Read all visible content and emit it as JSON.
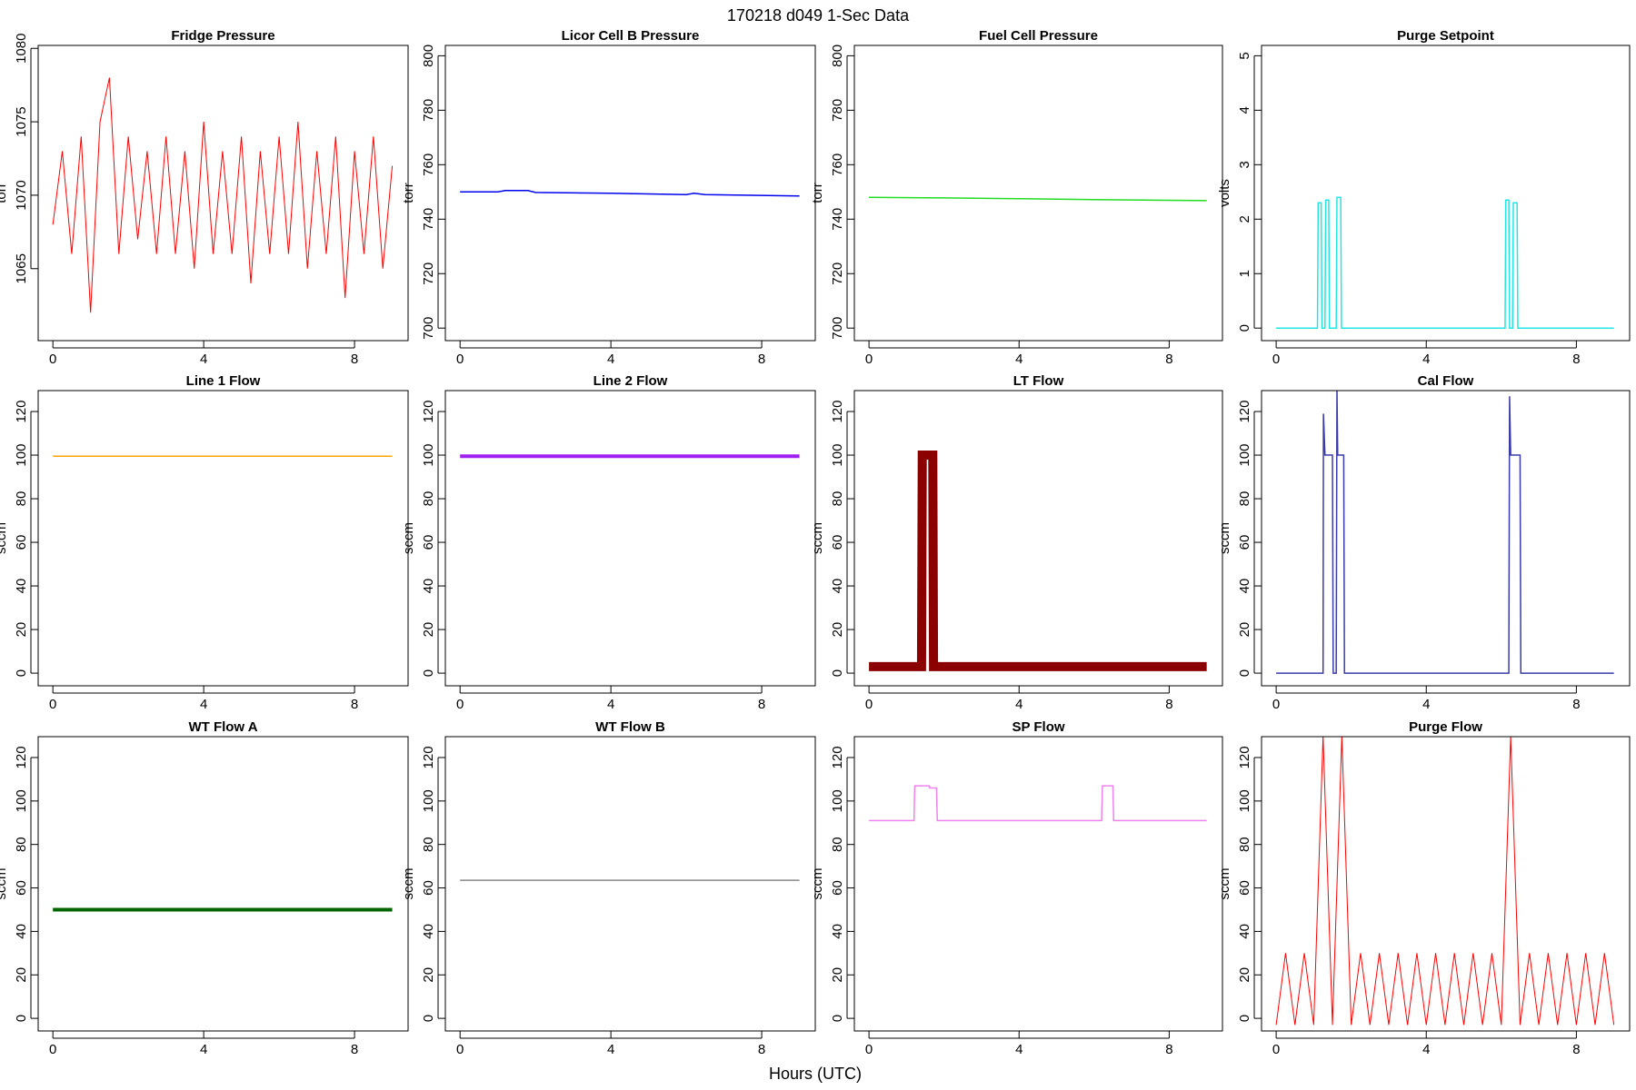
{
  "title": "170218   d049   1-Sec Data",
  "xlabel": "Hours (UTC)",
  "chart_data": [
    {
      "type": "line",
      "title": "Fridge Pressure",
      "ylabel": "torr",
      "color": "#ff0000",
      "line_width": 1,
      "x": [
        0,
        0.25,
        0.5,
        0.75,
        1,
        1.25,
        1.5,
        1.75,
        2,
        2.25,
        2.5,
        2.75,
        3,
        3.25,
        3.5,
        3.75,
        4,
        4.25,
        4.5,
        4.75,
        5,
        5.25,
        5.5,
        5.75,
        6,
        6.25,
        6.5,
        6.75,
        7,
        7.25,
        7.5,
        7.75,
        8,
        8.25,
        8.5,
        8.75,
        9
      ],
      "values": [
        1068,
        1073,
        1066,
        1074,
        1062,
        1075,
        1078,
        1066,
        1074,
        1067,
        1073,
        1066,
        1074,
        1066,
        1073,
        1065,
        1075,
        1066,
        1073,
        1066,
        1074,
        1064,
        1073,
        1066,
        1074,
        1066,
        1075,
        1065,
        1073,
        1066,
        1074,
        1063,
        1073,
        1066,
        1074,
        1065,
        1072
      ],
      "xlim": [
        -0.39,
        9.42
      ],
      "xticks": [
        0,
        4,
        8
      ],
      "ylim": [
        1060.1,
        1080.2
      ],
      "yticks": [
        1065,
        1070,
        1075,
        1080
      ]
    },
    {
      "type": "line",
      "title": "Licor Cell B Pressure",
      "ylabel": "torr",
      "color": "#0000ee",
      "line_width": 1.5,
      "x": [
        0,
        1,
        1.2,
        1.8,
        2,
        4,
        6,
        6.2,
        6.5,
        9
      ],
      "values": [
        750,
        750,
        750.5,
        750.5,
        749.8,
        749.5,
        749,
        749.5,
        749,
        748.5
      ],
      "xlim": [
        -0.39,
        9.42
      ],
      "xticks": [
        0,
        4,
        8
      ],
      "ylim": [
        695.4,
        803.8
      ],
      "yticks": [
        700,
        720,
        740,
        760,
        780,
        800
      ]
    },
    {
      "type": "line",
      "title": "Fuel Cell Pressure",
      "ylabel": "torr",
      "color": "#22dd22",
      "line_width": 1.5,
      "x": [
        0,
        2,
        4,
        6,
        9
      ],
      "values": [
        748,
        747.8,
        747.5,
        747.2,
        746.8
      ],
      "xlim": [
        -0.39,
        9.42
      ],
      "xticks": [
        0,
        4,
        8
      ],
      "ylim": [
        695.4,
        803.8
      ],
      "yticks": [
        700,
        720,
        740,
        760,
        780,
        800
      ]
    },
    {
      "type": "line",
      "title": "Purge Setpoint",
      "ylabel": "volts",
      "color": "#22e6e6",
      "line_width": 1.5,
      "x": [
        0,
        1.1,
        1.12,
        1.2,
        1.22,
        1.3,
        1.32,
        1.4,
        1.42,
        1.6,
        1.62,
        1.72,
        1.74,
        6.1,
        6.12,
        6.2,
        6.22,
        6.3,
        6.32,
        6.42,
        6.44,
        9
      ],
      "values": [
        0,
        0,
        2.3,
        2.3,
        0,
        0,
        2.35,
        2.35,
        0,
        0,
        2.4,
        2.4,
        0,
        0,
        2.35,
        2.35,
        0,
        0,
        2.3,
        2.3,
        0,
        0
      ],
      "xlim": [
        -0.39,
        9.42
      ],
      "xticks": [
        0,
        4,
        8
      ],
      "ylim": [
        -0.23,
        5.19
      ],
      "yticks": [
        0,
        1,
        2,
        3,
        4,
        5
      ]
    },
    {
      "type": "line",
      "title": "Line 1 Flow",
      "ylabel": "sccm",
      "color": "#ffa500",
      "line_width": 1.5,
      "x": [
        0,
        9
      ],
      "values": [
        99.5,
        99.5
      ],
      "xlim": [
        -0.39,
        9.42
      ],
      "xticks": [
        0,
        4,
        8
      ],
      "ylim": [
        -5.8,
        129.6
      ],
      "yticks": [
        0,
        20,
        40,
        60,
        80,
        100,
        120
      ]
    },
    {
      "type": "line",
      "title": "Line 2 Flow",
      "ylabel": "sccm",
      "color": "#a020f0",
      "line_width": 4,
      "x": [
        0,
        9
      ],
      "values": [
        99.5,
        99.5
      ],
      "xlim": [
        -0.39,
        9.42
      ],
      "xticks": [
        0,
        4,
        8
      ],
      "ylim": [
        -5.8,
        129.6
      ],
      "yticks": [
        0,
        20,
        40,
        60,
        80,
        100,
        120
      ]
    },
    {
      "type": "line",
      "title": "LT Flow",
      "ylabel": "sccm",
      "color": "#8b0000",
      "line_width": 10,
      "x": [
        0,
        1.4,
        1.42,
        1.7,
        1.72,
        9
      ],
      "values": [
        3,
        3,
        100,
        100,
        3,
        3
      ],
      "xlim": [
        -0.39,
        9.42
      ],
      "xticks": [
        0,
        4,
        8
      ],
      "ylim": [
        -5.8,
        129.6
      ],
      "yticks": [
        0,
        20,
        40,
        60,
        80,
        100,
        120
      ]
    },
    {
      "type": "line",
      "title": "Cal Flow",
      "ylabel": "sccm",
      "color": "#3a3aaa",
      "line_width": 1.5,
      "x": [
        0,
        1.25,
        1.26,
        1.3,
        1.5,
        1.52,
        1.6,
        1.62,
        1.64,
        1.8,
        1.82,
        6.2,
        6.22,
        6.25,
        6.5,
        6.52,
        9
      ],
      "values": [
        0,
        0,
        119,
        100,
        100,
        0,
        0,
        130,
        100,
        100,
        0,
        0,
        127,
        100,
        100,
        0,
        0
      ],
      "xlim": [
        -0.39,
        9.42
      ],
      "xticks": [
        0,
        4,
        8
      ],
      "ylim": [
        -5.8,
        129.6
      ],
      "yticks": [
        0,
        20,
        40,
        60,
        80,
        100,
        120
      ]
    },
    {
      "type": "line",
      "title": "WT Flow A",
      "ylabel": "sccm",
      "color": "#006400",
      "line_width": 4,
      "x": [
        0,
        9
      ],
      "values": [
        50,
        50
      ],
      "xlim": [
        -0.39,
        9.42
      ],
      "xticks": [
        0,
        4,
        8
      ],
      "ylim": [
        -5.8,
        129.6
      ],
      "yticks": [
        0,
        20,
        40,
        60,
        80,
        100,
        120
      ]
    },
    {
      "type": "line",
      "title": "WT Flow B",
      "ylabel": "sccm",
      "color": "#888888",
      "line_width": 1.5,
      "x": [
        0,
        9
      ],
      "values": [
        63.5,
        63.5
      ],
      "xlim": [
        -0.39,
        9.42
      ],
      "xticks": [
        0,
        4,
        8
      ],
      "ylim": [
        -5.8,
        129.6
      ],
      "yticks": [
        0,
        20,
        40,
        60,
        80,
        100,
        120
      ]
    },
    {
      "type": "line",
      "title": "SP Flow",
      "ylabel": "sccm",
      "color": "#ee82ee",
      "line_width": 1.5,
      "x": [
        0,
        1.2,
        1.22,
        1.6,
        1.62,
        1.8,
        1.82,
        6.2,
        6.22,
        6.5,
        6.52,
        9
      ],
      "values": [
        91,
        91,
        107,
        107,
        106,
        106,
        91,
        91,
        107,
        107,
        91,
        91
      ],
      "xlim": [
        -0.39,
        9.42
      ],
      "xticks": [
        0,
        4,
        8
      ],
      "ylim": [
        -5.8,
        129.6
      ],
      "yticks": [
        0,
        20,
        40,
        60,
        80,
        100,
        120
      ]
    },
    {
      "type": "line",
      "title": "Purge Flow",
      "ylabel": "sccm",
      "color": "#ff0000",
      "line_width": 1,
      "x": [
        0,
        0.25,
        0.5,
        0.75,
        1,
        1.25,
        1.5,
        1.75,
        2,
        2.25,
        2.5,
        2.75,
        3,
        3.25,
        3.5,
        3.75,
        4,
        4.25,
        4.5,
        4.75,
        5,
        5.25,
        5.5,
        5.75,
        6,
        6.25,
        6.5,
        6.75,
        7,
        7.25,
        7.5,
        7.75,
        8,
        8.25,
        8.5,
        8.75,
        9
      ],
      "values": [
        -3,
        30,
        -3,
        30,
        -3,
        130,
        -3,
        130,
        -3,
        30,
        -3,
        30,
        -3,
        30,
        -3,
        30,
        -3,
        30,
        -3,
        30,
        -3,
        30,
        -3,
        30,
        -3,
        130,
        -3,
        30,
        -3,
        30,
        -3,
        30,
        -3,
        30,
        -3,
        30,
        -3
      ],
      "xlim": [
        -0.39,
        9.42
      ],
      "xticks": [
        0,
        4,
        8
      ],
      "ylim": [
        -5.8,
        129.6
      ],
      "yticks": [
        0,
        20,
        40,
        60,
        80,
        100,
        120
      ]
    }
  ]
}
